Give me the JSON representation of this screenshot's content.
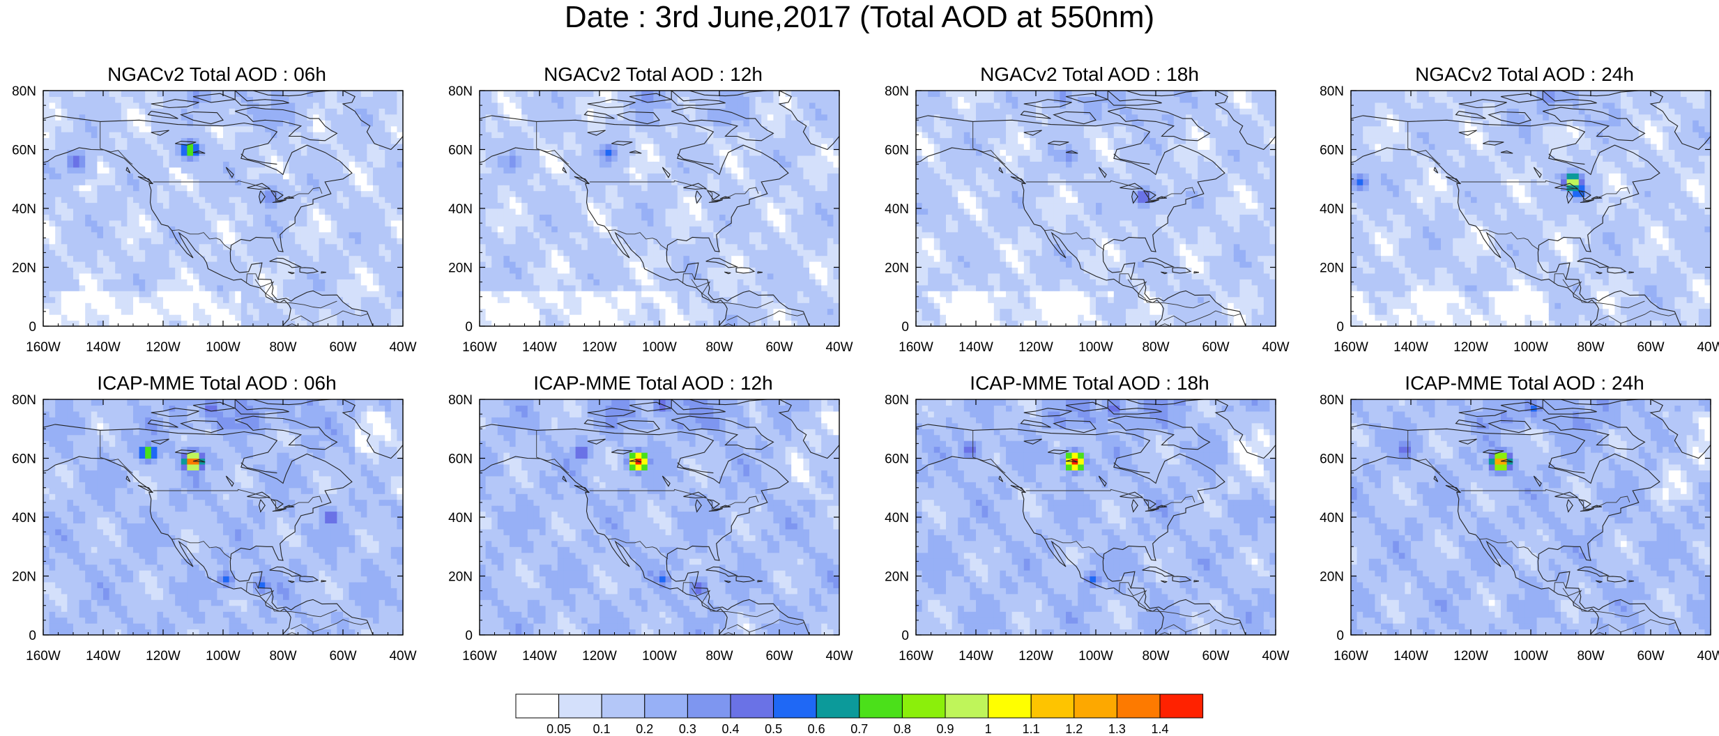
{
  "title": "Date : 3rd June,2017 (Total AOD at 550nm)",
  "panels": [
    {
      "title": "NGACv2 Total AOD : 06h",
      "model": "NGACv2",
      "lead": "06h",
      "base": 1,
      "hotspots": [
        [
          -112,
          59,
          0.7
        ],
        [
          -150,
          55,
          0.4
        ],
        [
          -110,
          77,
          0.3
        ],
        [
          -85,
          43,
          0.3
        ]
      ]
    },
    {
      "title": "NGACv2 Total AOD : 12h",
      "model": "NGACv2",
      "lead": "12h",
      "base": 1,
      "hotspots": [
        [
          -118,
          58,
          0.4
        ],
        [
          -150,
          55,
          0.3
        ],
        [
          -105,
          77,
          0.3
        ]
      ]
    },
    {
      "title": "NGACv2 Total AOD : 18h",
      "model": "NGACv2",
      "lead": "18h",
      "base": 1,
      "hotspots": [
        [
          -110,
          57,
          0.3
        ],
        [
          -85,
          43,
          0.4
        ],
        [
          -112,
          77,
          0.3
        ]
      ]
    },
    {
      "title": "NGACv2 Total AOD : 24h",
      "model": "NGACv2",
      "lead": "24h",
      "base": 1,
      "hotspots": [
        [
          -87,
          48,
          0.9
        ],
        [
          -85,
          45,
          0.5
        ],
        [
          -158,
          48,
          0.4
        ],
        [
          -95,
          77,
          0.3
        ]
      ]
    },
    {
      "title": "ICAP-MME Total AOD : 06h",
      "model": "ICAP-MME",
      "lead": "06h",
      "base": 2,
      "hotspots": [
        [
          -111,
          58,
          1.4
        ],
        [
          -126,
          61,
          0.7
        ],
        [
          -65,
          39,
          0.4
        ],
        [
          -100,
          18,
          0.4
        ],
        [
          -88,
          16,
          0.4
        ],
        [
          -105,
          76,
          0.4
        ]
      ]
    },
    {
      "title": "ICAP-MME Total AOD : 12h",
      "model": "ICAP-MME",
      "lead": "12h",
      "base": 2,
      "hotspots": [
        [
          -108,
          58,
          1.4
        ],
        [
          -127,
          61,
          0.4
        ],
        [
          -100,
          18,
          0.4
        ],
        [
          -88,
          15,
          0.4
        ],
        [
          -100,
          77,
          0.4
        ]
      ]
    },
    {
      "title": "ICAP-MME Total AOD : 18h",
      "model": "ICAP-MME",
      "lead": "18h",
      "base": 2,
      "hotspots": [
        [
          -108,
          58,
          1.4
        ],
        [
          -143,
          62,
          0.4
        ],
        [
          -102,
          18,
          0.4
        ],
        [
          -95,
          76,
          0.4
        ]
      ]
    },
    {
      "title": "ICAP-MME Total AOD : 24h",
      "model": "ICAP-MME",
      "lead": "24h",
      "base": 2,
      "hotspots": [
        [
          -111,
          58,
          1.3
        ],
        [
          -143,
          62,
          0.4
        ],
        [
          -100,
          76,
          0.4
        ]
      ]
    }
  ],
  "x_ticks": [
    "160W",
    "140W",
    "120W",
    "100W",
    "80W",
    "60W",
    "40W"
  ],
  "y_ticks": [
    "0",
    "20N",
    "40N",
    "60N",
    "80N"
  ],
  "extent": {
    "lon_min": -160,
    "lon_max": -40,
    "lat_min": 0,
    "lat_max": 80
  },
  "colorbar": {
    "levels": [
      "0.05",
      "0.1",
      "0.2",
      "0.3",
      "0.4",
      "0.5",
      "0.6",
      "0.7",
      "0.8",
      "0.9",
      "1",
      "1.1",
      "1.2",
      "1.3",
      "1.4"
    ],
    "thresholds": [
      0.05,
      0.1,
      0.2,
      0.3,
      0.4,
      0.5,
      0.6,
      0.7,
      0.8,
      0.9,
      1.0,
      1.1,
      1.2,
      1.3,
      1.4
    ],
    "colors": [
      "#ffffff",
      "#d4e0fb",
      "#b4c7f8",
      "#97b0f6",
      "#7e96f0",
      "#6a72e6",
      "#1f68f5",
      "#0c9a9a",
      "#4be01a",
      "#8bef0b",
      "#bff55a",
      "#ffff00",
      "#fec400",
      "#fda800",
      "#fd7a00",
      "#ff2200"
    ]
  }
}
